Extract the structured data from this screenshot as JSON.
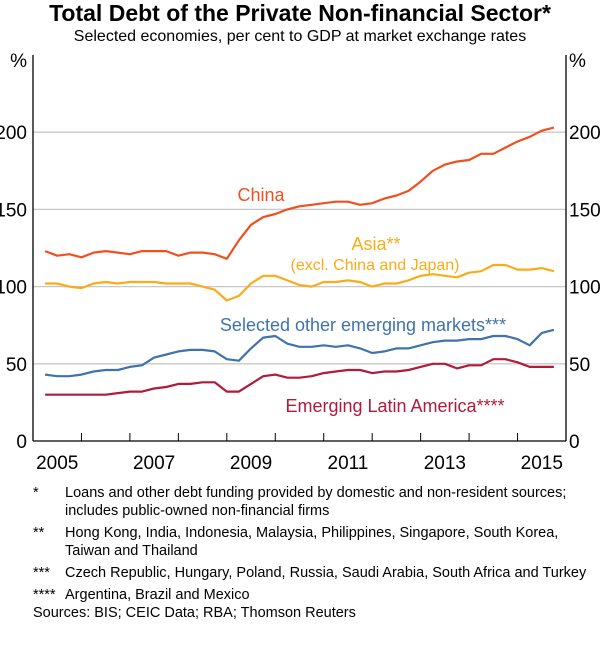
{
  "title": "Total Debt of the Private Non-financial Sector*",
  "subtitle": "Selected economies, per cent to GDP at market exchange rates",
  "chart_data": {
    "type": "line",
    "ylim": [
      0,
      250
    ],
    "xlim": [
      2005,
      2016
    ],
    "yticks": [
      0,
      50,
      100,
      150,
      200
    ],
    "ytick_labels": [
      "0",
      "50",
      "100",
      "150",
      "200"
    ],
    "y_unit_left": "%",
    "y_unit_right": "%",
    "xtick_labels": [
      "2005",
      "2007",
      "2009",
      "2011",
      "2013",
      "2015"
    ],
    "grid": "horizontal",
    "x": [
      2005.25,
      2005.5,
      2005.75,
      2006,
      2006.25,
      2006.5,
      2006.75,
      2007,
      2007.25,
      2007.5,
      2007.75,
      2008,
      2008.25,
      2008.5,
      2008.75,
      2009,
      2009.25,
      2009.5,
      2009.75,
      2010,
      2010.25,
      2010.5,
      2010.75,
      2011,
      2011.25,
      2011.5,
      2011.75,
      2012,
      2012.25,
      2012.5,
      2012.75,
      2013,
      2013.25,
      2013.5,
      2013.75,
      2014,
      2014.25,
      2014.5,
      2014.75,
      2015,
      2015.25,
      2015.5,
      2015.75
    ],
    "series": [
      {
        "name": "China",
        "color": "#f0501e",
        "label_lines": [
          "China"
        ],
        "values": [
          123,
          120,
          121,
          119,
          122,
          123,
          122,
          121,
          123,
          123,
          123,
          120,
          122,
          122,
          121,
          118,
          130,
          140,
          145,
          147,
          150,
          152,
          153,
          154,
          155,
          155,
          153,
          154,
          157,
          159,
          162,
          168,
          175,
          179,
          181,
          182,
          186,
          186,
          190,
          194,
          197,
          201,
          203
        ]
      },
      {
        "name": "Asia**",
        "color": "#fbab18",
        "label_lines": [
          "Asia**",
          "(excl. China and Japan)"
        ],
        "values": [
          102,
          102,
          100,
          99,
          102,
          103,
          102,
          103,
          103,
          103,
          102,
          102,
          102,
          100,
          98,
          91,
          94,
          102,
          107,
          107,
          104,
          101,
          100,
          103,
          103,
          104,
          103,
          100,
          102,
          102,
          104,
          107,
          108,
          107,
          106,
          109,
          110,
          114,
          114,
          111,
          111,
          112,
          110
        ]
      },
      {
        "name": "Selected other emerging markets***",
        "color": "#3f73ac",
        "label_lines": [
          "Selected other emerging markets***"
        ],
        "values": [
          43,
          42,
          42,
          43,
          45,
          46,
          46,
          48,
          49,
          54,
          56,
          58,
          59,
          59,
          58,
          53,
          52,
          60,
          67,
          68,
          63,
          61,
          61,
          62,
          61,
          62,
          60,
          57,
          58,
          60,
          60,
          62,
          64,
          65,
          65,
          66,
          66,
          68,
          68,
          66,
          62,
          70,
          72
        ]
      },
      {
        "name": "Emerging Latin America****",
        "color": "#b21a3c",
        "label_lines": [
          "Emerging Latin America****"
        ],
        "values": [
          30,
          30,
          30,
          30,
          30,
          30,
          31,
          32,
          32,
          34,
          35,
          37,
          37,
          38,
          38,
          32,
          32,
          37,
          42,
          43,
          41,
          41,
          42,
          44,
          45,
          46,
          46,
          44,
          45,
          45,
          46,
          48,
          50,
          50,
          47,
          49,
          49,
          53,
          53,
          51,
          48,
          48,
          48
        ]
      }
    ]
  },
  "footnotes": [
    {
      "mark": "*",
      "text": "Loans and other debt funding provided by domestic and non-resident sources; includes public-owned non-financial firms"
    },
    {
      "mark": "**",
      "text": "Hong Kong, India, Indonesia, Malaysia, Philippines, Singapore, South Korea, Taiwan and Thailand"
    },
    {
      "mark": "***",
      "text": "Czech Republic, Hungary, Poland, Russia, Saudi Arabia, South Africa and Turkey"
    },
    {
      "mark": "****",
      "text": "Argentina, Brazil and Mexico"
    }
  ],
  "sources": "Sources:  BIS; CEIC Data; RBA; Thomson Reuters"
}
